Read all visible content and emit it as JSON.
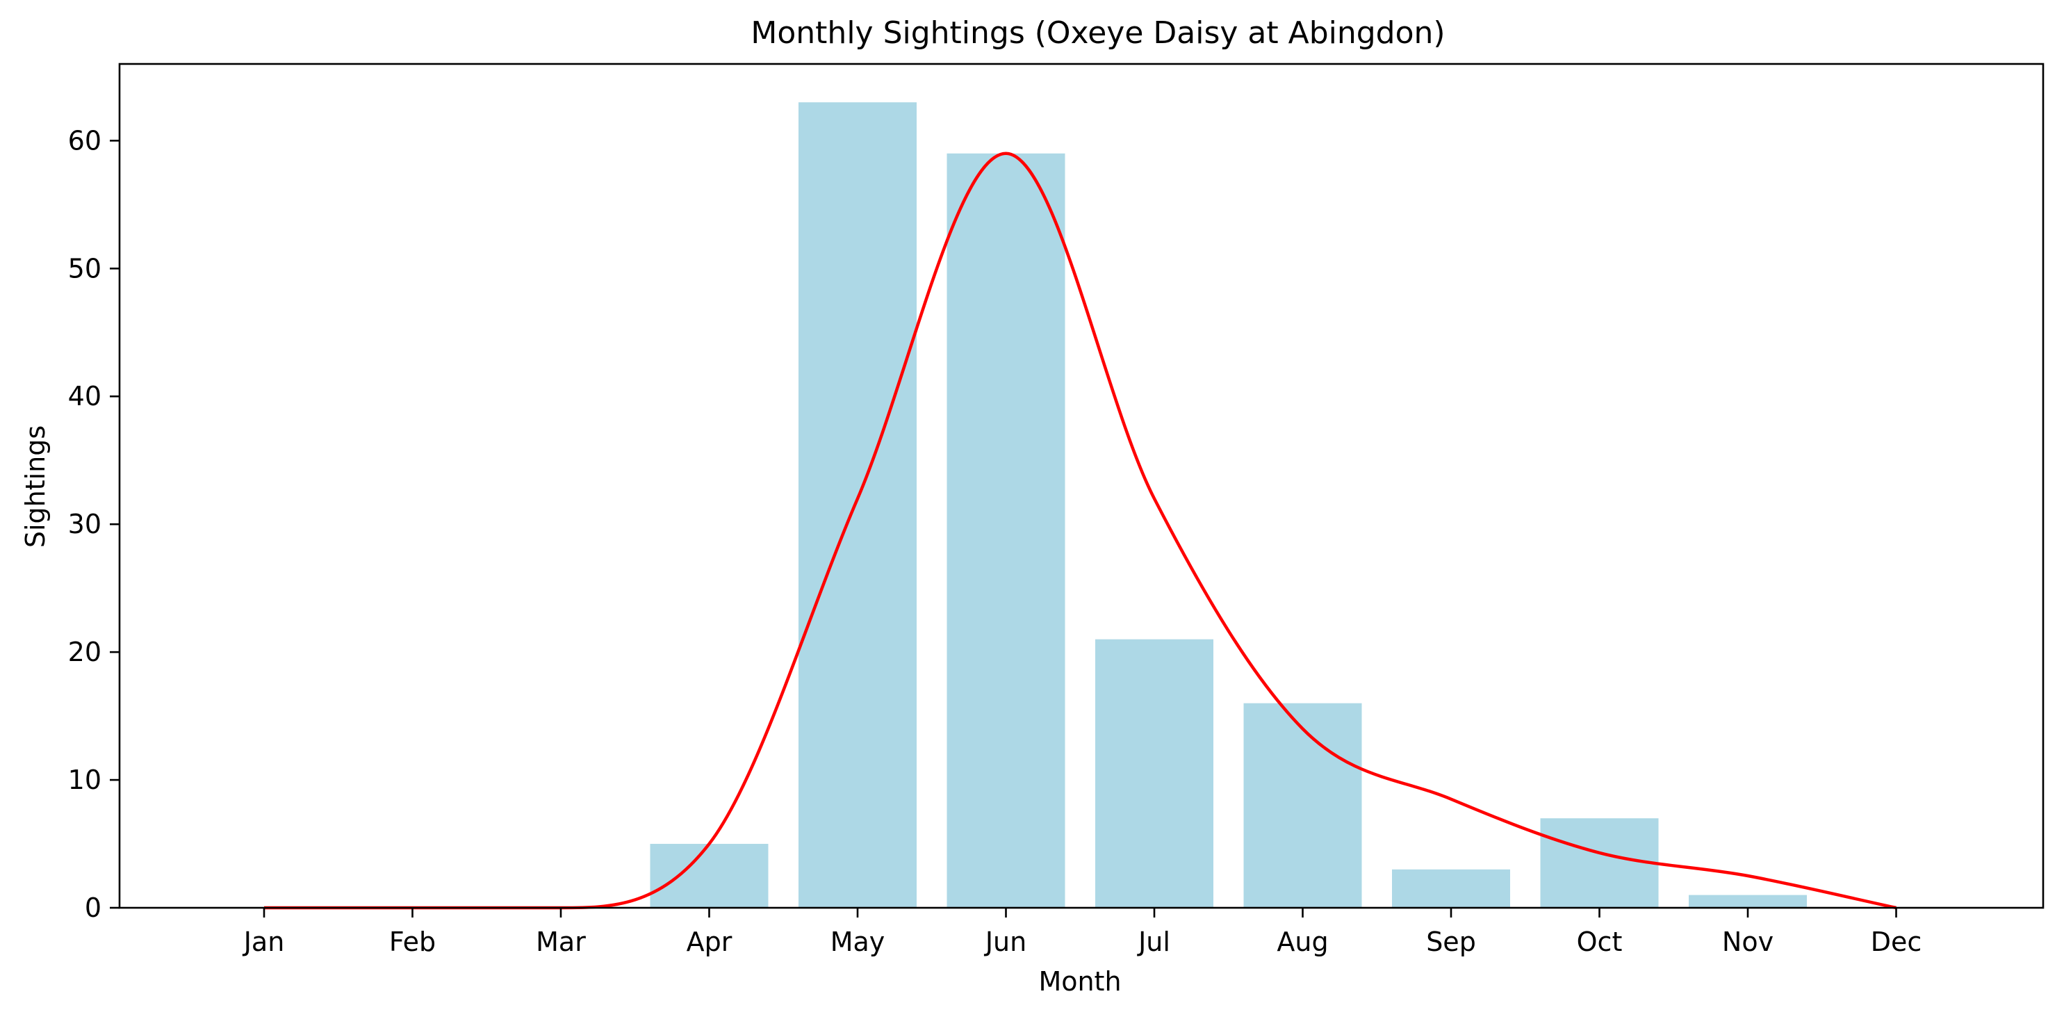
{
  "chart_data": {
    "type": "bar",
    "title": "Monthly Sightings (Oxeye Daisy at Abingdon)",
    "xlabel": "Month",
    "ylabel": "Sightings",
    "categories": [
      "Jan",
      "Feb",
      "Mar",
      "Apr",
      "May",
      "Jun",
      "Jul",
      "Aug",
      "Sep",
      "Oct",
      "Nov",
      "Dec"
    ],
    "series": [
      {
        "type": "bar",
        "values": [
          0,
          0,
          0,
          5,
          63,
          59,
          21,
          16,
          3,
          7,
          1,
          0
        ],
        "color": "#add8e6"
      },
      {
        "type": "line",
        "values": [
          0,
          0,
          0,
          5,
          32,
          59,
          32,
          14,
          8.5,
          4.3,
          2.5,
          0
        ],
        "color": "#ff0000"
      }
    ],
    "ylim": [
      0,
      66
    ],
    "yticks": [
      0,
      10,
      20,
      30,
      40,
      50,
      60
    ],
    "grid": false,
    "legend": "none"
  }
}
